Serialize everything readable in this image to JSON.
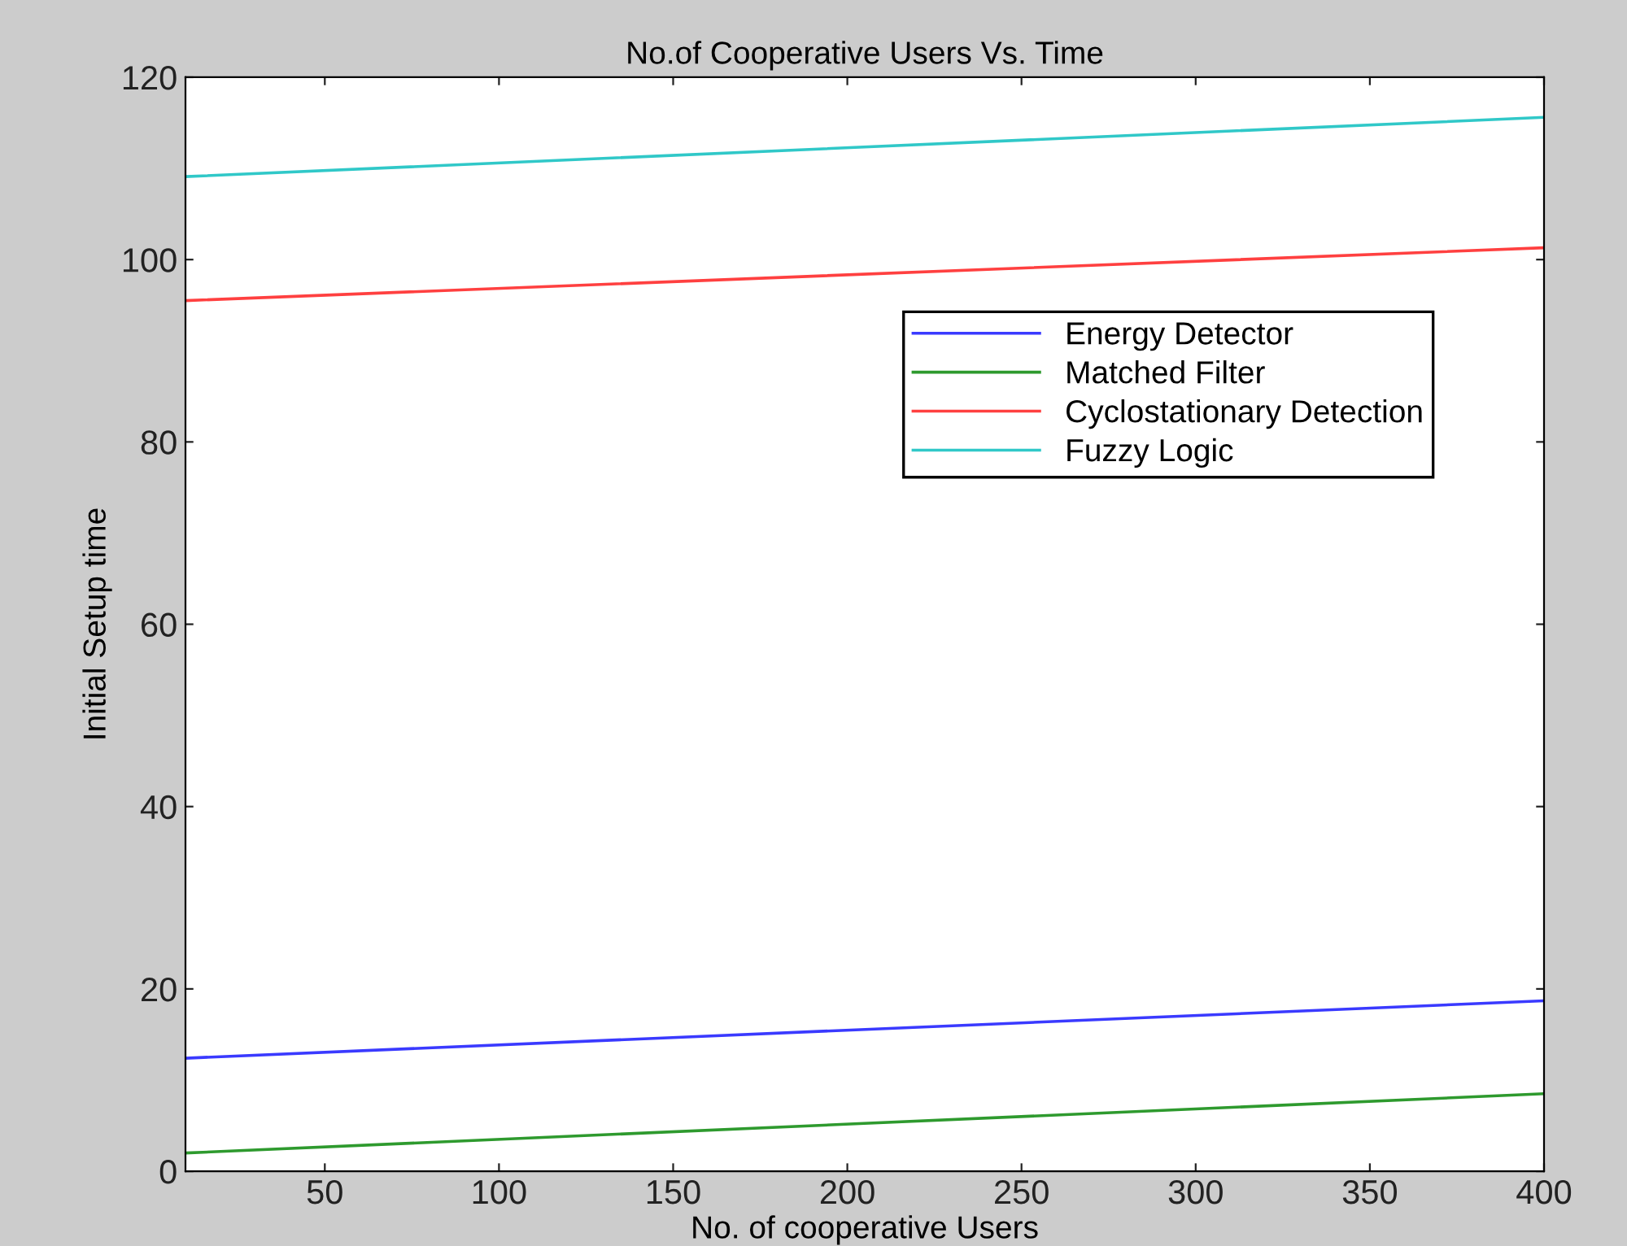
{
  "chart_data": {
    "type": "line",
    "title": "No.of Cooperative Users Vs. Time",
    "xlabel": "No. of cooperative Users",
    "ylabel": "Initial Setup time",
    "xlim": [
      10,
      400
    ],
    "xticks": [
      50,
      100,
      150,
      200,
      250,
      300,
      350,
      400
    ],
    "ylim": [
      0,
      120
    ],
    "yticks": [
      0,
      20,
      40,
      60,
      80,
      100,
      120
    ],
    "x": [
      10,
      400
    ],
    "grid": false,
    "legend": "top right",
    "marker": "none",
    "line_style": "solid",
    "series": [
      {
        "name": "Energy Detector",
        "color": "#3a3aff",
        "values": [
          12.4,
          18.7
        ]
      },
      {
        "name": "Matched Filter",
        "color": "#2e9a2e",
        "values": [
          2,
          8.5
        ]
      },
      {
        "name": "Cyclostationary Detection",
        "color": "#ff4040",
        "values": [
          95.5,
          101.3
        ]
      },
      {
        "name": "Fuzzy Logic",
        "color": "#30c8c8",
        "values": [
          109.1,
          115.6
        ]
      }
    ]
  }
}
